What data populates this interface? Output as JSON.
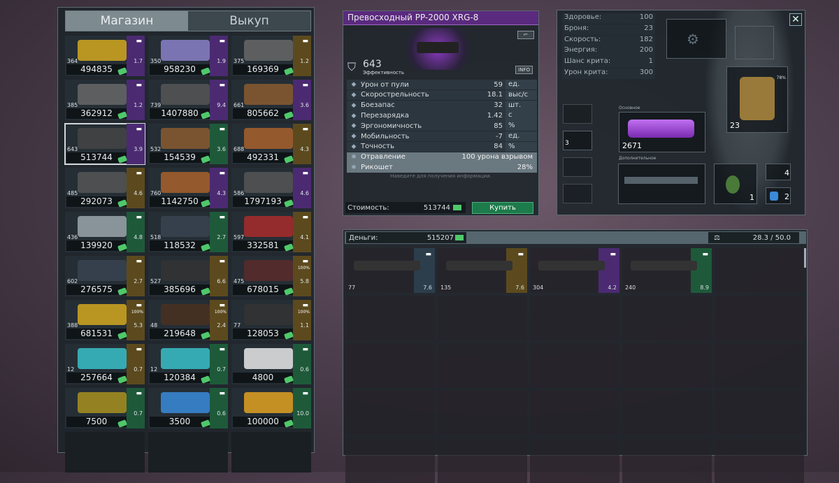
{
  "shop": {
    "tabs": [
      {
        "label": "Магазин",
        "active": true
      },
      {
        "label": "Выкуп",
        "active": false
      }
    ],
    "tier_colors": {
      "purple": "#4b2a72",
      "gold": "#5c4a1e",
      "green": "#1e5a3a",
      "blue": "#2c3e4c"
    },
    "items": [
      {
        "armor": "364",
        "weight": "1.7",
        "price": "494835",
        "tier": "purple",
        "icon": "pistol-icon",
        "color": "#d4a81e"
      },
      {
        "armor": "350",
        "weight": "1.9",
        "price": "958230",
        "tier": "purple",
        "icon": "pistol-icon",
        "color": "#8a80c8"
      },
      {
        "armor": "375",
        "weight": "1.2",
        "price": "169369",
        "tier": "gold",
        "icon": "pistol-icon",
        "color": "#666"
      },
      {
        "armor": "385",
        "weight": "1.2",
        "price": "362912",
        "tier": "purple",
        "icon": "pistol-icon",
        "color": "#666"
      },
      {
        "armor": "739",
        "weight": "9.4",
        "price": "1407880",
        "tier": "purple",
        "icon": "rifle-icon",
        "color": "#555"
      },
      {
        "armor": "661",
        "weight": "3.6",
        "price": "805662",
        "tier": "purple",
        "icon": "rifle-icon",
        "color": "#8a5a30"
      },
      {
        "armor": "643",
        "weight": "3.9",
        "price": "513744",
        "tier": "purple",
        "icon": "rifle-icon",
        "color": "#444",
        "selected": true
      },
      {
        "armor": "532",
        "weight": "3.6",
        "price": "154539",
        "tier": "green",
        "icon": "rifle-icon",
        "color": "#8a5a30"
      },
      {
        "armor": "688",
        "weight": "4.3",
        "price": "492331",
        "tier": "gold",
        "icon": "sniper-icon",
        "color": "#a8602a"
      },
      {
        "armor": "485",
        "weight": "4.6",
        "price": "292073",
        "tier": "gold",
        "icon": "shotgun-icon",
        "color": "#555"
      },
      {
        "armor": "760",
        "weight": "4.3",
        "price": "1142750",
        "tier": "purple",
        "icon": "shotgun-icon",
        "color": "#a8602a"
      },
      {
        "armor": "586",
        "weight": "4.6",
        "price": "1797193",
        "tier": "purple",
        "icon": "shotgun-icon",
        "color": "#555"
      },
      {
        "armor": "436",
        "weight": "4.8",
        "price": "139920",
        "tier": "green",
        "icon": "shotgun-icon",
        "color": "#9aa4ac"
      },
      {
        "armor": "518",
        "weight": "2.7",
        "price": "118532",
        "tier": "green",
        "icon": "launcher-icon",
        "color": "#3a4250"
      },
      {
        "armor": "597",
        "weight": "4.1",
        "price": "332581",
        "tier": "gold",
        "icon": "launcher-icon",
        "color": "#a82a2a"
      },
      {
        "armor": "602",
        "weight": "2.7",
        "price": "276575",
        "tier": "gold",
        "icon": "launcher-icon",
        "color": "#3a4250"
      },
      {
        "armor": "527",
        "weight": "6.6",
        "price": "385696",
        "tier": "gold",
        "icon": "launcher-icon",
        "color": "#333"
      },
      {
        "armor": "475",
        "weight": "5.8",
        "price": "678015",
        "tier": "gold",
        "icon": "armor-icon",
        "durability": "100%",
        "color": "#5a2a2a"
      },
      {
        "armor": "388",
        "weight": "5.3",
        "price": "681531",
        "tier": "gold",
        "icon": "armor-icon",
        "durability": "100%",
        "color": "#d4a81e"
      },
      {
        "armor": "48",
        "weight": "2.4",
        "price": "219648",
        "tier": "gold",
        "icon": "vest-icon",
        "durability": "100%",
        "color": "#4a3020"
      },
      {
        "armor": "77",
        "weight": "1.1",
        "price": "128053",
        "tier": "gold",
        "icon": "helmet-icon",
        "durability": "100%",
        "color": "#333"
      },
      {
        "armor": "12",
        "weight": "0.7",
        "price": "257664",
        "tier": "gold",
        "icon": "glove-icon",
        "color": "#3ac0c8"
      },
      {
        "armor": "12",
        "weight": "0.7",
        "price": "120384",
        "tier": "green",
        "icon": "glove-icon",
        "color": "#3ac0c8"
      },
      {
        "armor": "",
        "weight": "0.6",
        "price": "4800",
        "tier": "green",
        "icon": "medkit-icon",
        "color": "#e8e8e8"
      },
      {
        "armor": "",
        "weight": "0.7",
        "price": "7500",
        "tier": "green",
        "icon": "grenade-icon",
        "color": "#a8901e"
      },
      {
        "armor": "",
        "weight": "0.6",
        "price": "3500",
        "tier": "green",
        "icon": "battery-icon",
        "color": "#3a8ad8"
      },
      {
        "armor": "",
        "weight": "10.0",
        "price": "100000",
        "tier": "green",
        "icon": "device-icon",
        "color": "#e0a020"
      }
    ]
  },
  "detail": {
    "title": "Превосходный PP-2000 XRG-8",
    "efficiency": "643",
    "efficiency_label": "Эффективность",
    "info": "INFO",
    "stats": [
      {
        "label": "Урон от пули",
        "value": "59",
        "unit": "ед.",
        "icon": "bullet-icon"
      },
      {
        "label": "Скорострельность",
        "value": "18.1",
        "unit": "выс/с",
        "icon": "firerate-icon"
      },
      {
        "label": "Боезапас",
        "value": "32",
        "unit": "шт.",
        "icon": "ammo-icon"
      },
      {
        "label": "Перезарядка",
        "value": "1.42",
        "unit": "с",
        "icon": "reload-icon"
      },
      {
        "label": "Эргономичность",
        "value": "85",
        "unit": "%",
        "icon": "hand-icon"
      },
      {
        "label": "Мобильность",
        "value": "-7",
        "unit": "ед.",
        "icon": "feather-icon"
      },
      {
        "label": "Точность",
        "value": "84",
        "unit": "%",
        "icon": "crosshair-icon"
      }
    ],
    "specials": [
      {
        "label": "Отравление",
        "value": "100 урона взрывом",
        "icon": "poison-icon"
      },
      {
        "label": "Рикошет",
        "value": "28%",
        "icon": "ricochet-icon"
      }
    ],
    "hint": "Наведите для получения информации.",
    "cost_label": "Стоимость:",
    "cost": "513744",
    "buy": "Купить"
  },
  "character": {
    "stats": [
      {
        "label": "Здоровье:",
        "value": "100"
      },
      {
        "label": "Броня:",
        "value": "23"
      },
      {
        "label": "Скорость:",
        "value": "182"
      },
      {
        "label": "Энергия:",
        "value": "200"
      },
      {
        "label": "Шанс крита:",
        "value": "1"
      },
      {
        "label": "Урон крита:",
        "value": "300"
      }
    ],
    "primary_label": "Основное",
    "primary_armor": "2671",
    "secondary_label": "Дополнительное",
    "vest_armor": "23",
    "vest_durability": "78%",
    "side_slot_armor": "3",
    "grenade_count": "1",
    "medkit_count": "4",
    "battery_count": "2"
  },
  "inventory": {
    "money_label": "Деньги:",
    "money": "515207",
    "weight": "28.3 / 50.0",
    "items": [
      {
        "armor": "77",
        "weight": "7.6",
        "tier": "blue"
      },
      {
        "armor": "135",
        "weight": "7.6",
        "tier": "gold"
      },
      {
        "armor": "304",
        "weight": "4.2",
        "tier": "purple"
      },
      {
        "armor": "240",
        "weight": "8.9",
        "tier": "green"
      }
    ]
  }
}
